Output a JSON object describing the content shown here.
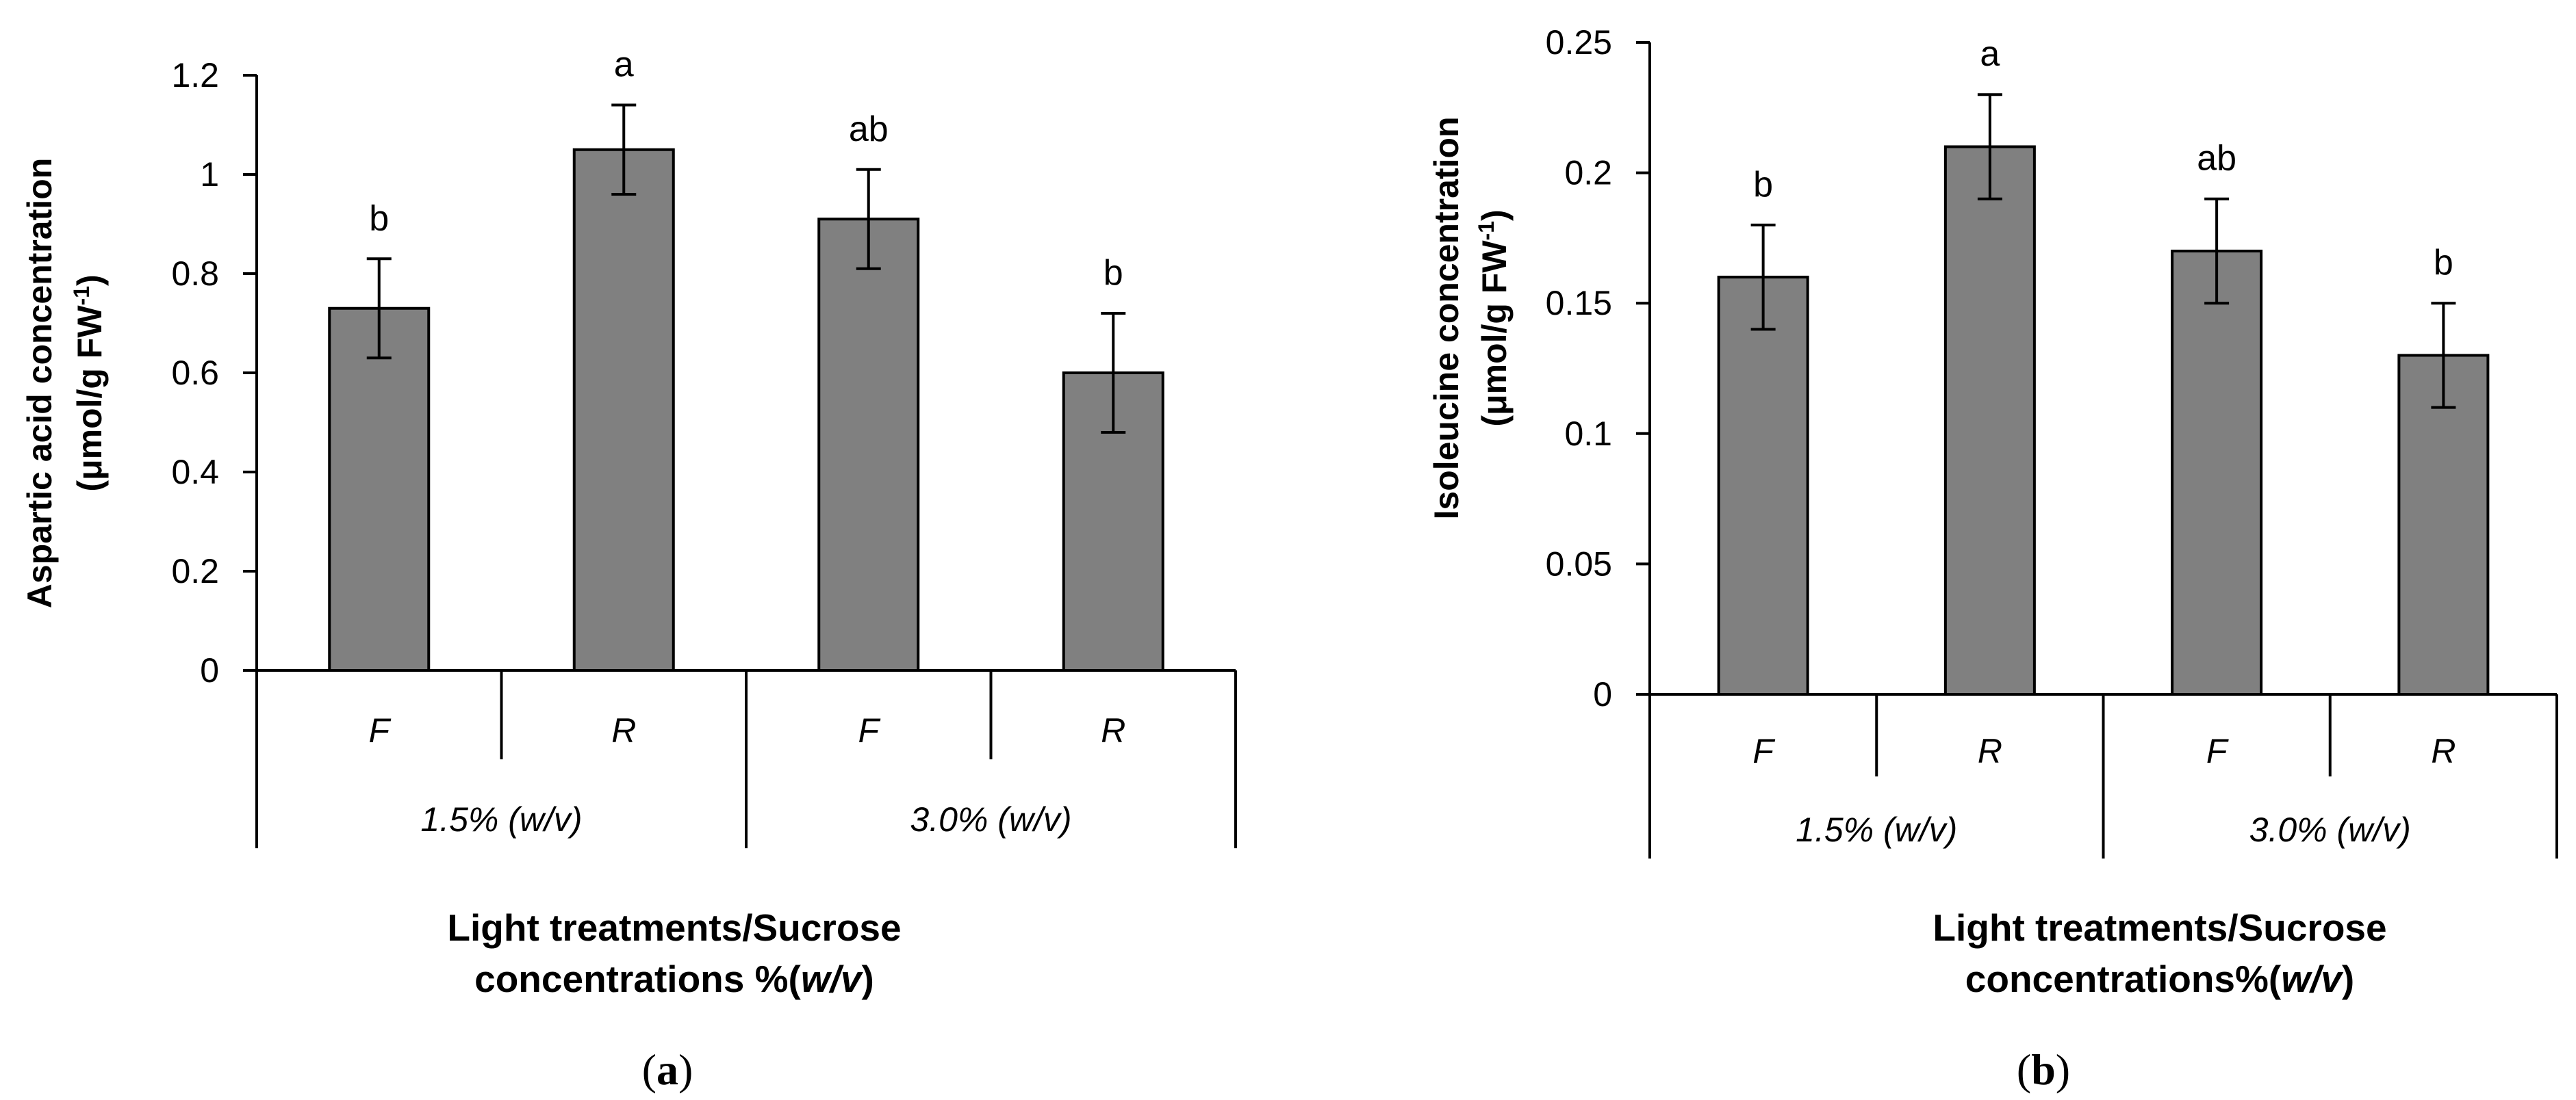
{
  "chart_data": [
    {
      "type": "bar",
      "panel": "a",
      "categories": [
        "F",
        "R",
        "F",
        "R"
      ],
      "groups": [
        "1.5% (w/v)",
        "3.0% (w/v)"
      ],
      "values": [
        0.73,
        1.05,
        0.91,
        0.6
      ],
      "errors": [
        0.1,
        0.09,
        0.1,
        0.12
      ],
      "letters": [
        "b",
        "a",
        "ab",
        "b"
      ],
      "ylabel_line1": "Aspartic acid concentration",
      "ylabel_line2_pre": "(μmol/g FW",
      "ylabel_sup": "-1",
      "ylabel_line2_post": ")",
      "xlabel_line1": "Light treatments/Sucrose",
      "xlabel_line2_pre": "concentrations %(",
      "xlabel_line2_it": "w/v",
      "xlabel_line2_post": ")",
      "ylim": [
        0,
        1.2
      ],
      "yticks": [
        0,
        0.2,
        0.4,
        0.6,
        0.8,
        1,
        1.2
      ],
      "ytick_labels": [
        "0",
        "0.2",
        "0.4",
        "0.6",
        "0.8",
        "1",
        "1.2"
      ],
      "bar_color": "#808080"
    },
    {
      "type": "bar",
      "panel": "b",
      "categories": [
        "F",
        "R",
        "F",
        "R"
      ],
      "groups": [
        "1.5% (w/v)",
        "3.0% (w/v)"
      ],
      "values": [
        0.16,
        0.21,
        0.17,
        0.13
      ],
      "errors": [
        0.02,
        0.02,
        0.02,
        0.02
      ],
      "letters": [
        "b",
        "a",
        "ab",
        "b"
      ],
      "ylabel_line1": "Isoleucine concentration",
      "ylabel_line2_pre": "(μmol/g FW",
      "ylabel_sup": "-1",
      "ylabel_line2_post": ")",
      "xlabel_line1": "Light treatments/Sucrose",
      "xlabel_line2_pre": "concentrations%(",
      "xlabel_line2_it": "w/v",
      "xlabel_line2_post": ")",
      "ylim": [
        0,
        0.25
      ],
      "yticks": [
        0,
        0.05,
        0.1,
        0.15,
        0.2,
        0.25
      ],
      "ytick_labels": [
        "0",
        "0.05",
        "0.1",
        "0.15",
        "0.2",
        "0.25"
      ],
      "bar_color": "#808080"
    }
  ],
  "panel_labels": {
    "a_open": "(",
    "a_letter": "a",
    "a_close": ")",
    "b_open": "(",
    "b_letter": "b",
    "b_close": ")"
  }
}
